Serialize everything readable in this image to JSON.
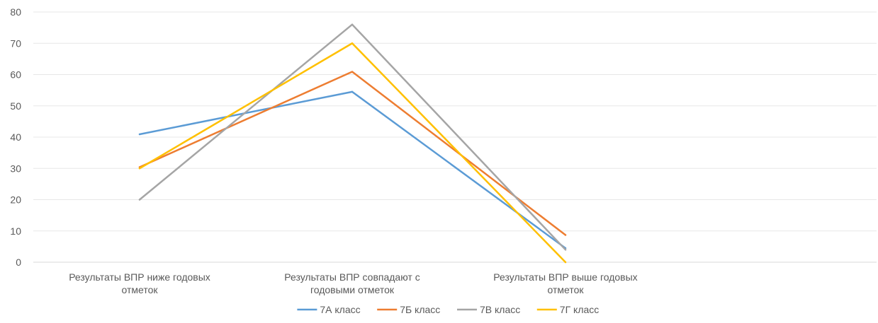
{
  "chart_data": {
    "type": "line",
    "title": "",
    "xlabel": "",
    "ylabel": "",
    "ylim": [
      0,
      80
    ],
    "yticks": [
      0,
      10,
      20,
      30,
      40,
      50,
      60,
      70,
      80
    ],
    "grid": true,
    "legend_position": "bottom",
    "categories": [
      [
        "Результаты ВПР ниже годовых",
        "отметок"
      ],
      [
        "Результаты ВПР совпадают с",
        "годовыми отметок"
      ],
      [
        "Результаты ВПР выше годовых",
        "отметок"
      ]
    ],
    "series": [
      {
        "name": "7А класс",
        "color": "#5B9BD5",
        "values": [
          40.9,
          54.5,
          4.5
        ]
      },
      {
        "name": "7Б класс",
        "color": "#ED7D31",
        "values": [
          30.4,
          60.9,
          8.7
        ]
      },
      {
        "name": "7В класс",
        "color": "#A5A5A5",
        "values": [
          20.0,
          76.0,
          4.0
        ]
      },
      {
        "name": "7Г класс",
        "color": "#FFC000",
        "values": [
          30.0,
          70.0,
          0.0
        ]
      }
    ]
  }
}
